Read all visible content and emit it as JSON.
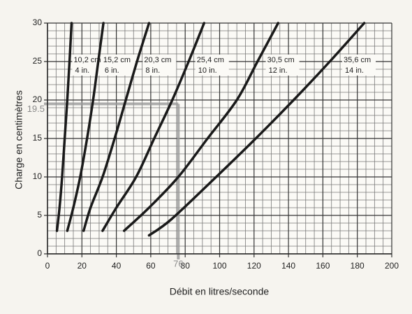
{
  "chart_data": {
    "type": "line",
    "x_label": "Débit en litres/seconde",
    "y_label": "Charge en centimètres",
    "xlim": [
      0,
      200
    ],
    "xticks": [
      0,
      20,
      40,
      60,
      80,
      100,
      120,
      140,
      160,
      180,
      200
    ],
    "ylim": [
      0,
      30
    ],
    "yticks": [
      0,
      5,
      10,
      15,
      20,
      25,
      30
    ],
    "grid": true,
    "series": [
      {
        "name": "10,2 cm",
        "sub": "4 in.",
        "color": "#1a1a1a",
        "x": [
          5.5,
          7,
          8.5,
          10,
          11.5,
          12.8,
          14
        ],
        "values": [
          3,
          6,
          10,
          15,
          20,
          25,
          30
        ]
      },
      {
        "name": "15,2 cm",
        "sub": "6 in.",
        "color": "#1a1a1a",
        "x": [
          11.5,
          15,
          19,
          23,
          26.5,
          29.5,
          32.5
        ],
        "values": [
          3,
          6,
          10,
          15,
          20,
          25,
          30
        ]
      },
      {
        "name": "20,3 cm",
        "sub": "8 in.",
        "color": "#1a1a1a",
        "x": [
          21,
          25,
          32,
          39,
          45.5,
          52,
          59
        ],
        "values": [
          3,
          6,
          10,
          15,
          20,
          25,
          30
        ]
      },
      {
        "name": "25,4 cm",
        "sub": "10 in.",
        "color": "#1a1a1a",
        "x": [
          32,
          40,
          51.5,
          62,
          72.5,
          82,
          91
        ],
        "values": [
          3,
          6,
          10,
          15,
          20,
          25,
          30
        ]
      },
      {
        "name": "30,5 cm",
        "sub": "12 in.",
        "color": "#1a1a1a",
        "x": [
          44.5,
          59,
          76,
          93,
          110,
          122,
          134
        ],
        "values": [
          3,
          6,
          10,
          15,
          20,
          25,
          30
        ]
      },
      {
        "name": "35,6 cm",
        "sub": "14 in.",
        "color": "#1a1a1a",
        "x": [
          59,
          72,
          98,
          121,
          143,
          164,
          184
        ],
        "values": [
          2.4,
          4.5,
          10,
          15,
          20,
          25,
          30
        ]
      }
    ],
    "guide": {
      "x": 76,
      "y": 19.5,
      "color": "#9a9a9a"
    }
  }
}
